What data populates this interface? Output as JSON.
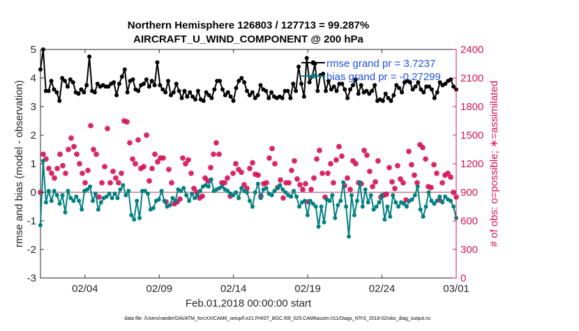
{
  "chart_data": {
    "type": "line",
    "title": "Northern Hemisphere 126803 / 127713 = 99.287%",
    "subtitle": "AIRCRAFT_U_WIND_COMPONENT @ 200 hPa",
    "xlabel": "Feb.01,2018 00:00:00 start",
    "ylabel": "rmse and bias (model - observation)",
    "ylabel_right": "# of obs: o=possible; ∗=assimilated",
    "footer": "data file: /Users/raeder/DAI/ATM_forcXX/CAM6_setup/f.e21.FHIST_BGC.f09_025.CAM6assim.011/Diags_NTrS_2018-02/obs_diag_output.nc",
    "xlim": [
      0,
      28
    ],
    "ylim": [
      -3,
      5
    ],
    "ylim_right": [
      0,
      2400
    ],
    "x_ticks": [
      {
        "value": 3,
        "label": "02/04"
      },
      {
        "value": 8,
        "label": "02/09"
      },
      {
        "value": 13,
        "label": "02/14"
      },
      {
        "value": 18,
        "label": "02/19"
      },
      {
        "value": 23,
        "label": "02/24"
      },
      {
        "value": 28,
        "label": "03/01"
      }
    ],
    "y_ticks": [
      {
        "value": 5,
        "label": "5"
      },
      {
        "value": 4,
        "label": "4"
      },
      {
        "value": 3,
        "label": "3"
      },
      {
        "value": 2,
        "label": "2"
      },
      {
        "value": 1,
        "label": "1"
      },
      {
        "value": 0,
        "label": "0"
      },
      {
        "value": -1,
        "label": "-1"
      },
      {
        "value": -2,
        "label": "-2"
      },
      {
        "value": -3,
        "label": "-3"
      }
    ],
    "y_right_ticks": [
      {
        "value": 2400,
        "label": "2400"
      },
      {
        "value": 2100,
        "label": "2100"
      },
      {
        "value": 1800,
        "label": "1800"
      },
      {
        "value": 1500,
        "label": "1500"
      },
      {
        "value": 1200,
        "label": "1200"
      },
      {
        "value": 900,
        "label": "900"
      },
      {
        "value": 600,
        "label": "600"
      },
      {
        "value": 300,
        "label": "300"
      },
      {
        "value": 0,
        "label": "0"
      }
    ],
    "x_step": 0.25,
    "series": [
      {
        "name": "rmse",
        "legend": "rmse grand pr = 3.7237",
        "color": "#000000",
        "axis": "left",
        "values": [
          4.3,
          5.0,
          3.55,
          3.55,
          3.9,
          3.6,
          3.5,
          3.2,
          4.0,
          3.9,
          3.7,
          3.95,
          3.85,
          3.5,
          3.45,
          3.6,
          3.5,
          3.75,
          4.75,
          3.55,
          3.5,
          3.8,
          3.7,
          3.75,
          3.7,
          3.7,
          3.8,
          3.85,
          3.4,
          3.8,
          4.05,
          4.3,
          3.5,
          3.9,
          3.95,
          3.6,
          3.55,
          3.75,
          3.8,
          3.95,
          3.7,
          3.9,
          3.75,
          4.55,
          3.75,
          3.6,
          3.5,
          3.9,
          3.4,
          3.5,
          3.8,
          3.55,
          3.3,
          3.55,
          3.35,
          3.5,
          3.35,
          3.25,
          3.55,
          3.25,
          3.2,
          3.5,
          3.4,
          3.3,
          3.6,
          3.9,
          3.9,
          3.6,
          3.4,
          3.5,
          3.35,
          3.2,
          3.65,
          3.9,
          4.0,
          3.85,
          3.55,
          3.4,
          3.5,
          3.3,
          3.4,
          3.75,
          3.6,
          3.55,
          3.3,
          3.5,
          3.35,
          3.3,
          3.35,
          3.3,
          3.55,
          3.55,
          3.3,
          3.8,
          3.55,
          4.4,
          3.8,
          3.35,
          4.7,
          3.85,
          4.05,
          4.5,
          3.55,
          4.1,
          4.15,
          3.55,
          3.9,
          3.6,
          3.7,
          3.55,
          3.8,
          3.8,
          3.6,
          3.3,
          3.6,
          3.75,
          3.95,
          3.45,
          3.75,
          3.5,
          3.55,
          3.45,
          3.55,
          3.75,
          3.2,
          3.25,
          3.2,
          3.45,
          3.3,
          3.2,
          3.4,
          3.75,
          3.65,
          3.5,
          3.85,
          3.9,
          3.85,
          3.6,
          3.7,
          3.85,
          3.6,
          3.5,
          3.7,
          3.7,
          3.6,
          3.3,
          3.5,
          3.85,
          3.75,
          3.8,
          3.9,
          3.95,
          3.7,
          3.6
        ],
        "notes": "sampled at ~0.18-day resolution, trimmed by render script to available range"
      },
      {
        "name": "bias",
        "legend": "bias grand pr = -0.27299",
        "color": "#008080",
        "axis": "left",
        "values": [
          -1.15,
          1.1,
          -0.35,
          0.05,
          -0.3,
          0.05,
          -0.1,
          -0.4,
          -0.1,
          -0.7,
          0.05,
          -0.2,
          -0.3,
          -0.15,
          -0.3,
          -0.6,
          0.05,
          0.1,
          0.2,
          -0.3,
          -0.05,
          -0.6,
          -0.35,
          -0.2,
          -0.15,
          -0.05,
          -0.2,
          -0.05,
          -0.2,
          0.1,
          0.25,
          -0.1,
          0.05,
          -0.8,
          -0.95,
          -0.3,
          -0.9,
          0.05,
          0.05,
          -0.05,
          -0.6,
          -0.55,
          -0.3,
          -0.25,
          0.05,
          -0.3,
          -0.5,
          -0.45,
          -0.2,
          -0.3,
          0.1,
          0.05,
          0.15,
          -0.1,
          -0.3,
          -0.05,
          -0.2,
          -0.1,
          0.05,
          0.2,
          0.25,
          0.2,
          0.45,
          0.05,
          0.1,
          0.15,
          0.2,
          0.1,
          0.05,
          -0.05,
          -0.1,
          0.0,
          -0.2,
          0.15,
          0.05,
          0.0,
          -0.3,
          -0.5,
          0.0,
          0.3,
          -0.2,
          0.1,
          0.15,
          -0.05,
          -0.1,
          0.05,
          0.15,
          0.25,
          0.1,
          0.0,
          -0.1,
          -0.15,
          0.05,
          -0.15,
          -0.5,
          -0.35,
          -0.3,
          -0.8,
          -0.3,
          -0.4,
          -0.5,
          -1.2,
          -0.5,
          -1.05,
          -0.25,
          -0.3,
          -0.1,
          -0.9,
          -0.45,
          -0.3,
          0.35,
          -0.5,
          -1.55,
          -0.1,
          -0.8,
          -0.3,
          0.35,
          -0.5,
          0.1,
          -0.35,
          -0.1,
          -0.6,
          -0.5,
          -0.35,
          -0.1,
          -0.95,
          -0.5,
          -0.85,
          -0.1,
          -0.35,
          -0.5,
          -0.35,
          -0.4,
          -0.5,
          -0.3,
          -0.25,
          -0.1,
          0.2,
          -0.6,
          -0.85,
          -0.5,
          0.0,
          -0.3,
          -0.4,
          -0.3,
          -0.15,
          -0.35,
          -0.15,
          -0.25,
          -0.3,
          -0.5,
          -0.9
        ]
      },
      {
        "name": "obs_assimilated",
        "color": "#d4145a",
        "axis": "right",
        "values": [
          900,
          1300,
          1250,
          1150,
          1100,
          1050,
          1150,
          1300,
          1180,
          1100,
          1350,
          1470,
          1380,
          1300,
          1200,
          1100,
          1000,
          1130,
          1600,
          1350,
          1300,
          850,
          1000,
          1170,
          1570,
          1000,
          1120,
          1050,
          1000,
          1100,
          1650,
          1640,
          1420,
          1250,
          1200,
          1450,
          1150,
          1170,
          1500,
          1020,
          1150,
          1300,
          1220,
          1260,
          1260,
          800,
          1140,
          1000,
          780,
          800,
          830,
          1260,
          1200,
          1240,
          1100,
          940,
          900,
          840,
          860,
          1050,
          1020,
          1160,
          1300,
          1420,
          1300,
          1000,
          1000,
          1050,
          860,
          1100,
          1200,
          1140,
          1110,
          980,
          940,
          1150,
          1210,
          1090,
          1080,
          860,
          990,
          1000,
          1260,
          1360,
          1200,
          950,
          1030,
          840,
          1000,
          1000,
          1130,
          1230,
          1040,
          980,
          930,
          990,
          800,
          930,
          1050,
          1250,
          1340,
          1100,
          850,
          1100,
          1200,
          1000,
          1240,
          1380,
          1280,
          970,
          1050,
          930,
          1230,
          1200,
          1000,
          990,
          1340,
          1290,
          1120,
          960,
          1010,
          1230,
          850,
          870,
          880,
          1160,
          1010,
          940,
          1180,
          1040,
          1000,
          820,
          1330,
          1190,
          1080,
          1000,
          1400,
          1370,
          1250,
          960,
          950,
          1190,
          1100,
          820,
          1000,
          1080,
          1100,
          1060,
          900,
          850
        ]
      }
    ]
  }
}
